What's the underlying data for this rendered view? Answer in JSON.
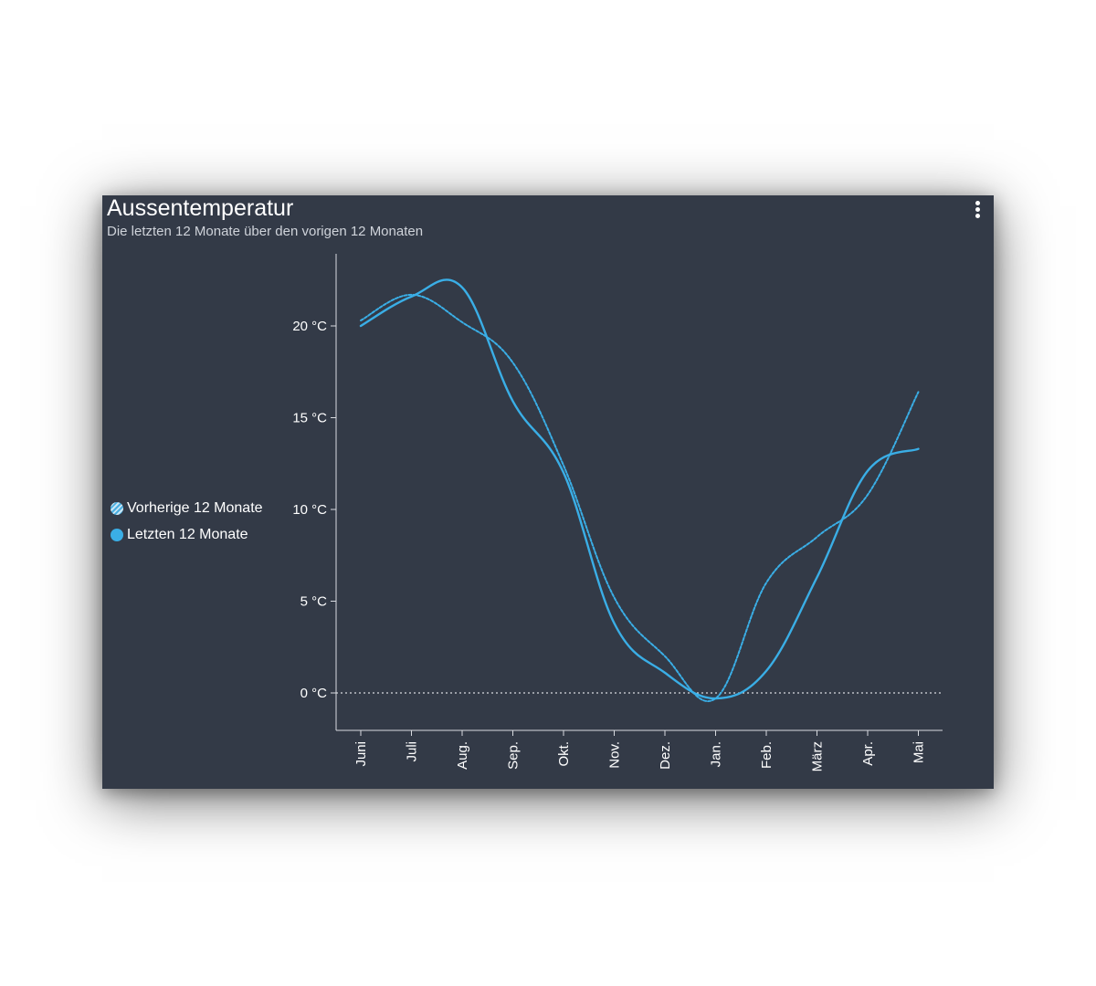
{
  "card": {
    "title": "Aussentemperatur",
    "subtitle": "Die letzten 12 Monate über den vorigen 12 Monaten",
    "menu_icon": "more-vertical-icon"
  },
  "legend": [
    {
      "label": "Vorherige 12 Monate",
      "style": "hatched"
    },
    {
      "label": "Letzten 12 Monate",
      "style": "solid"
    }
  ],
  "colors": {
    "background": "#333a47",
    "series": "#3aaee6",
    "axis": "#d8dbe0",
    "text": "#ffffff"
  },
  "chart_data": {
    "type": "line",
    "title": "Aussentemperatur",
    "subtitle": "Die letzten 12 Monate über den vorigen 12 Monaten",
    "categories": [
      "Juni",
      "Juli",
      "Aug.",
      "Sep.",
      "Okt.",
      "Nov.",
      "Dez.",
      "Jan.",
      "Feb.",
      "März",
      "Apr.",
      "Mai"
    ],
    "series": [
      {
        "name": "Vorherige 12 Monate",
        "style": "dashed",
        "values": [
          20.3,
          21.7,
          20.2,
          18.0,
          12.4,
          5.2,
          2.0,
          -0.3,
          6.0,
          8.5,
          10.8,
          16.4
        ]
      },
      {
        "name": "Letzten 12 Monate",
        "style": "solid",
        "values": [
          20.0,
          21.6,
          22.1,
          15.9,
          12.0,
          3.8,
          1.1,
          -0.3,
          1.2,
          6.3,
          12.1,
          13.3
        ]
      }
    ],
    "ylim": [
      -2,
      24
    ],
    "yticks": [
      {
        "value": 0,
        "label": "0 °C"
      },
      {
        "value": 5,
        "label": "5 °C"
      },
      {
        "value": 10,
        "label": "10 °C"
      },
      {
        "value": 15,
        "label": "15 °C"
      },
      {
        "value": 20,
        "label": "20 °C"
      }
    ],
    "reference_line": {
      "value": 0,
      "style": "dotted"
    },
    "x_label_rotation": "vertical",
    "legend_position": "left",
    "grid": false
  }
}
